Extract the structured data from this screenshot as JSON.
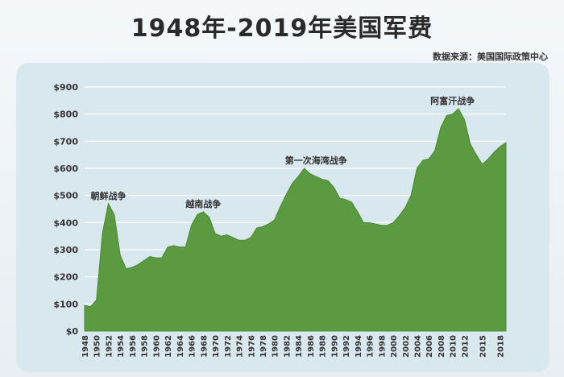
{
  "header": {
    "title": "1948年-2019年美国军费",
    "source": "数据来源：美国国际政策中心"
  },
  "colors": {
    "fill": "#5b9a41",
    "stroke": "#4d8a35",
    "grid": "#ffffff",
    "text": "#333333"
  },
  "chart_data": {
    "type": "area",
    "title": "1948年-2019年美国军费",
    "ylim": [
      0,
      900
    ],
    "grid": true,
    "y_ticks": [
      0,
      100,
      200,
      300,
      400,
      500,
      600,
      700,
      800,
      900
    ],
    "y_tick_labels": [
      "$0",
      "$100",
      "$200",
      "$300",
      "$400",
      "$500",
      "$600",
      "$700",
      "$800",
      "$900"
    ],
    "x_tick_labels": [
      1948,
      1950,
      1952,
      1954,
      1956,
      1958,
      1960,
      1962,
      1964,
      1966,
      1968,
      1970,
      1972,
      1974,
      1976,
      1978,
      1980,
      1982,
      1984,
      1986,
      1988,
      1990,
      1992,
      1994,
      1996,
      1998,
      2000,
      2002,
      2004,
      2006,
      2008,
      2010,
      2012,
      2015,
      2018
    ],
    "x": [
      1948,
      1949,
      1950,
      1951,
      1952,
      1953,
      1954,
      1955,
      1956,
      1957,
      1958,
      1959,
      1960,
      1961,
      1962,
      1963,
      1964,
      1965,
      1966,
      1967,
      1968,
      1969,
      1970,
      1971,
      1972,
      1973,
      1974,
      1975,
      1976,
      1977,
      1978,
      1979,
      1980,
      1981,
      1982,
      1983,
      1984,
      1985,
      1986,
      1987,
      1988,
      1989,
      1990,
      1991,
      1992,
      1993,
      1994,
      1995,
      1996,
      1997,
      1998,
      1999,
      2000,
      2001,
      2002,
      2003,
      2004,
      2005,
      2006,
      2007,
      2008,
      2009,
      2010,
      2011,
      2012,
      2013,
      2014,
      2015,
      2016,
      2017,
      2018,
      2019
    ],
    "values": [
      95,
      90,
      115,
      360,
      470,
      430,
      280,
      230,
      235,
      245,
      260,
      275,
      270,
      270,
      310,
      315,
      310,
      310,
      390,
      430,
      440,
      420,
      360,
      350,
      355,
      345,
      335,
      335,
      345,
      380,
      385,
      395,
      410,
      460,
      505,
      545,
      570,
      600,
      580,
      570,
      560,
      555,
      530,
      490,
      485,
      475,
      440,
      400,
      400,
      395,
      390,
      390,
      400,
      425,
      455,
      500,
      600,
      630,
      635,
      665,
      750,
      795,
      800,
      820,
      780,
      690,
      650,
      615,
      635,
      660,
      680,
      695
    ],
    "annotations": [
      {
        "text": "朝鲜战争",
        "x": 1952,
        "y": 470
      },
      {
        "text": "越南战争",
        "x": 1968,
        "y": 440
      },
      {
        "text": "第一次海湾战争",
        "x": 1987,
        "y": 600
      },
      {
        "text": "阿富汗战争",
        "x": 2010,
        "y": 820
      }
    ]
  }
}
